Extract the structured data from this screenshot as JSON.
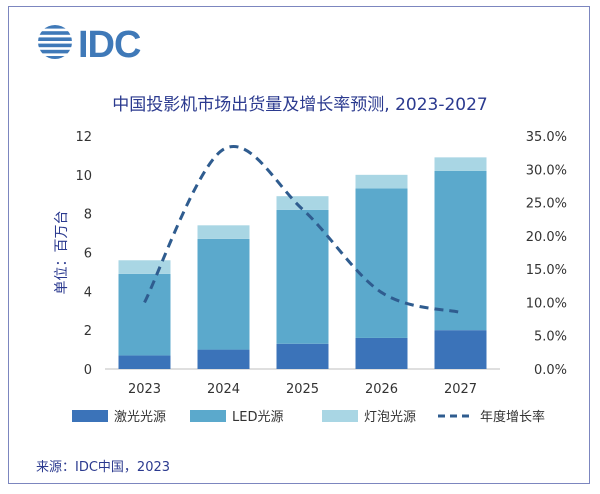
{
  "logo_text": "IDC",
  "chart_data": {
    "type": "bar",
    "stacked": true,
    "title": "中国投影机市场出货量及增长率预测, 2023-2027",
    "ylabel": "单位：百万台",
    "categories": [
      "2023",
      "2024",
      "2025",
      "2026",
      "2027"
    ],
    "ylim": [
      0,
      12
    ],
    "y_ticks": [
      "0",
      "2",
      "4",
      "6",
      "8",
      "10",
      "12"
    ],
    "y2lim": [
      0,
      35
    ],
    "y2_ticks": [
      "0.0%",
      "5.0%",
      "10.0%",
      "15.0%",
      "20.0%",
      "25.0%",
      "30.0%",
      "35.0%"
    ],
    "series": [
      {
        "name": "激光光源",
        "type": "bar",
        "color": "#3b73b9",
        "values": [
          0.7,
          1.0,
          1.3,
          1.6,
          2.0
        ]
      },
      {
        "name": "LED光源",
        "type": "bar",
        "color": "#5ba9cc",
        "values": [
          4.2,
          5.7,
          6.9,
          7.7,
          8.2
        ]
      },
      {
        "name": "灯泡光源",
        "type": "bar",
        "color": "#a9d6e4",
        "values": [
          0.7,
          0.7,
          0.7,
          0.7,
          0.7
        ]
      },
      {
        "name": "年度增长率",
        "type": "line",
        "axis": "right",
        "color": "#2f5c8f",
        "dashed": true,
        "values": [
          10.0,
          33.0,
          24.0,
          11.5,
          8.5
        ]
      }
    ],
    "legend_position": "bottom",
    "grid": false
  },
  "source": "来源：IDC中国，2023"
}
